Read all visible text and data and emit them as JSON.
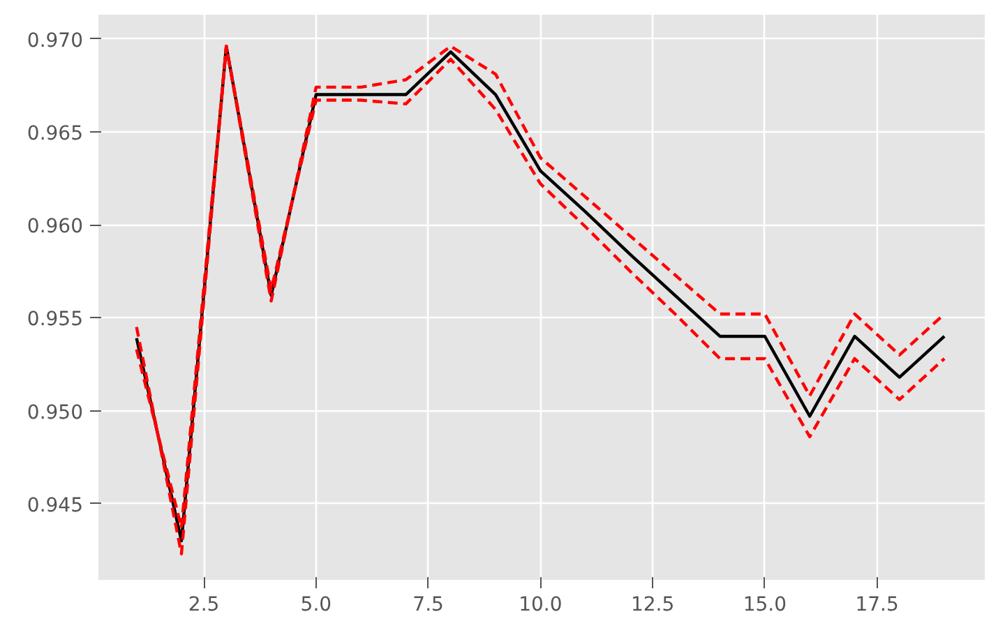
{
  "chart_data": {
    "type": "line",
    "x": [
      1,
      2,
      3,
      4,
      5,
      6,
      7,
      8,
      9,
      10,
      11,
      12,
      13,
      14,
      15,
      16,
      17,
      18,
      19
    ],
    "series": [
      {
        "color": "#000000",
        "line_style": "solid",
        "values": [
          0.9539,
          0.943,
          0.9696,
          0.9562,
          0.967,
          0.967,
          0.967,
          0.9693,
          0.967,
          0.9629,
          0.9607,
          0.9584,
          0.9562,
          0.954,
          0.954,
          0.9497,
          0.954,
          0.9518,
          0.954
        ]
      },
      {
        "color": "#ff0000",
        "line_style": "dashed",
        "values": [
          0.9545,
          0.9423,
          0.9696,
          0.9559,
          0.9674,
          0.9674,
          0.9678,
          0.9696,
          0.9681,
          0.9636,
          0.9615,
          0.9594,
          0.9573,
          0.9552,
          0.9552,
          0.9508,
          0.9552,
          0.953,
          0.9552
        ]
      },
      {
        "color": "#ff0000",
        "line_style": "dashed",
        "values": [
          0.9533,
          0.9437,
          0.9696,
          0.9565,
          0.9667,
          0.9667,
          0.9665,
          0.9689,
          0.9662,
          0.9622,
          0.9599,
          0.9575,
          0.9552,
          0.9528,
          0.9528,
          0.9486,
          0.9528,
          0.9506,
          0.9528
        ]
      }
    ],
    "xlim": [
      0.15,
      19.9
    ],
    "ylim": [
      0.9409,
      0.9713
    ],
    "xticks": [
      {
        "value": 2.5,
        "label": "2.5"
      },
      {
        "value": 5,
        "label": "5.0"
      },
      {
        "value": 7.5,
        "label": "7.5"
      },
      {
        "value": 10,
        "label": "10.0"
      },
      {
        "value": 12.5,
        "label": "12.5"
      },
      {
        "value": 15,
        "label": "15.0"
      },
      {
        "value": 17.5,
        "label": "17.5"
      }
    ],
    "yticks": [
      {
        "value": 0.945,
        "label": "0.945"
      },
      {
        "value": 0.95,
        "label": "0.950"
      },
      {
        "value": 0.955,
        "label": "0.955"
      },
      {
        "value": 0.96,
        "label": "0.960"
      },
      {
        "value": 0.965,
        "label": "0.965"
      },
      {
        "value": 0.97,
        "label": "0.970"
      }
    ],
    "grid": true
  }
}
